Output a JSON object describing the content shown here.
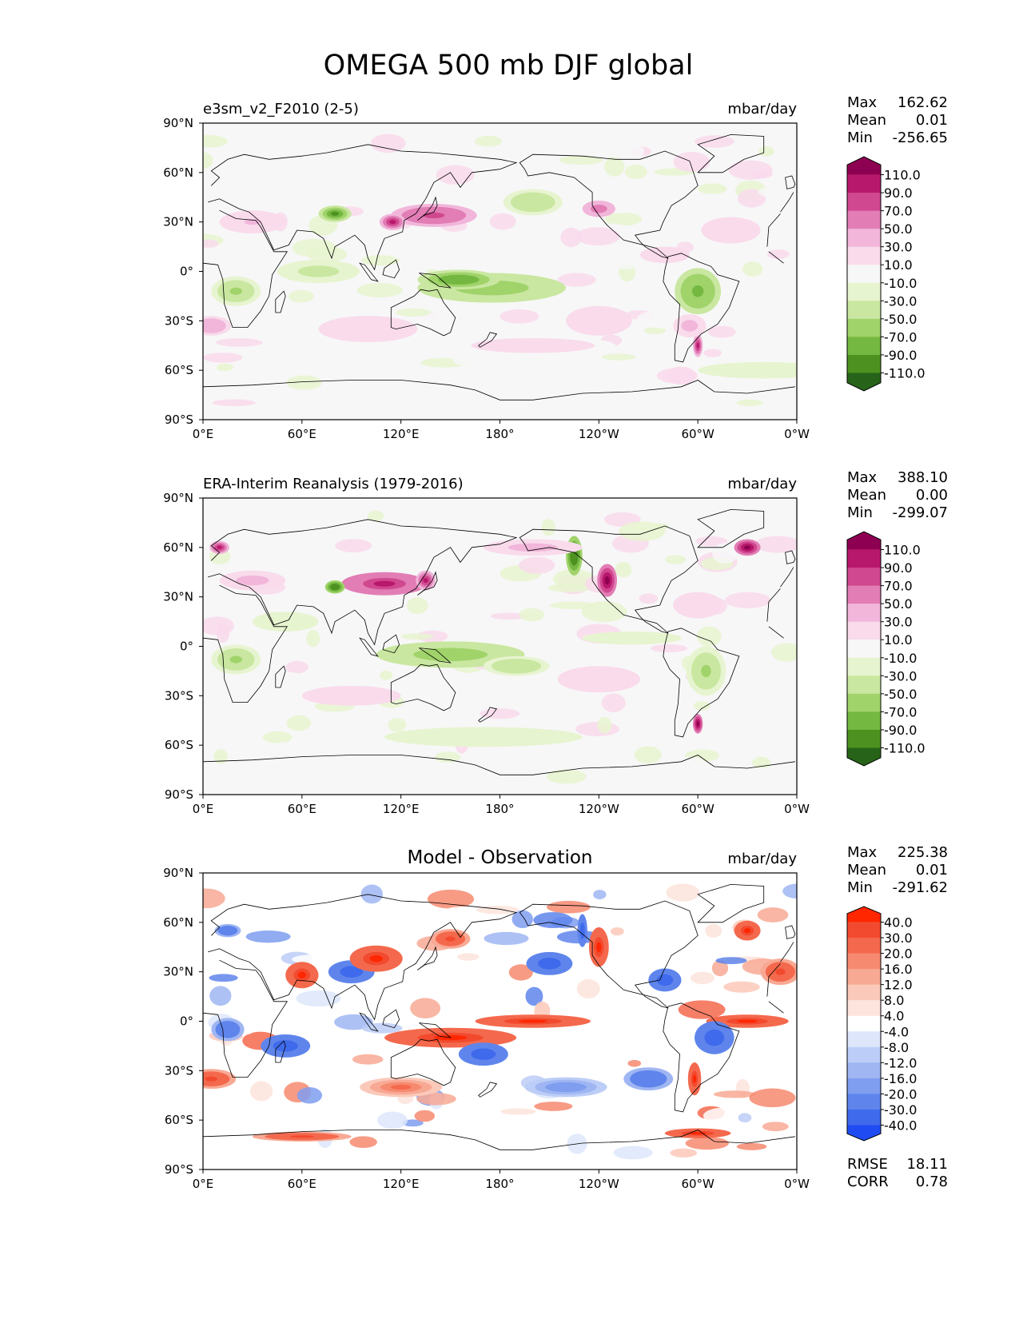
{
  "figure": {
    "title": "OMEGA 500 mb DJF global"
  },
  "chart_data": [
    {
      "type": "heatmap",
      "left_title": "e3sm_v2_F2010 (2-5)",
      "center_title": "",
      "units": "mbar/day",
      "stats": {
        "max_label": "Max",
        "max": "162.62",
        "mean_label": "Mean",
        "mean": "0.01",
        "min_label": "Min",
        "min": "-256.65"
      },
      "colorbar": {
        "levels": [
          "110.0",
          "90.0",
          "70.0",
          "50.0",
          "30.0",
          "10.0",
          "-10.0",
          "-30.0",
          "-50.0",
          "-70.0",
          "-90.0",
          "-110.0"
        ],
        "colors": [
          "#8e0152",
          "#b8186b",
          "#d0488f",
          "#e27db5",
          "#f1b6da",
          "#f9dbec",
          "#f7f7f7",
          "#e7f4d0",
          "#c9e7a0",
          "#a0d36a",
          "#74b841",
          "#4d9221",
          "#276419"
        ]
      },
      "xticks": [
        "0°E",
        "60°E",
        "120°E",
        "180°",
        "120°W",
        "60°W",
        "0°W"
      ],
      "yticks": [
        "90°N",
        "60°N",
        "30°N",
        "0°",
        "30°S",
        "60°S",
        "90°S"
      ]
    },
    {
      "type": "heatmap",
      "left_title": "ERA-Interim Reanalysis (1979-2016)",
      "center_title": "",
      "units": "mbar/day",
      "stats": {
        "max_label": "Max",
        "max": "388.10",
        "mean_label": "Mean",
        "mean": "0.00",
        "min_label": "Min",
        "min": "-299.07"
      },
      "colorbar": {
        "levels": [
          "110.0",
          "90.0",
          "70.0",
          "50.0",
          "30.0",
          "10.0",
          "-10.0",
          "-30.0",
          "-50.0",
          "-70.0",
          "-90.0",
          "-110.0"
        ],
        "colors": [
          "#8e0152",
          "#b8186b",
          "#d0488f",
          "#e27db5",
          "#f1b6da",
          "#f9dbec",
          "#f7f7f7",
          "#e7f4d0",
          "#c9e7a0",
          "#a0d36a",
          "#74b841",
          "#4d9221",
          "#276419"
        ]
      },
      "xticks": [
        "0°E",
        "60°E",
        "120°E",
        "180°",
        "120°W",
        "60°W",
        "0°W"
      ],
      "yticks": [
        "90°N",
        "60°N",
        "30°N",
        "0°",
        "30°S",
        "60°S",
        "90°S"
      ]
    },
    {
      "type": "heatmap",
      "left_title": "",
      "center_title": "Model - Observation",
      "units": "mbar/day",
      "stats": {
        "max_label": "Max",
        "max": "225.38",
        "mean_label": "Mean",
        "mean": "0.01",
        "min_label": "Min",
        "min": "-291.62"
      },
      "rmse_label": "RMSE",
      "rmse": "18.11",
      "corr_label": "CORR",
      "corr": "0.78",
      "colorbar": {
        "levels": [
          "40.0",
          "30.0",
          "20.0",
          "16.0",
          "12.0",
          "8.0",
          "4.0",
          "-4.0",
          "-8.0",
          "-12.0",
          "-16.0",
          "-20.0",
          "-30.0",
          "-40.0"
        ],
        "colors": [
          "#ff2600",
          "#f24a2e",
          "#f4694d",
          "#f68a70",
          "#f8a994",
          "#fbc9ba",
          "#fde4dc",
          "#ffffff",
          "#dde6fb",
          "#bccdf7",
          "#9fb6f3",
          "#7f9ef0",
          "#5f85ec",
          "#3f6aeb",
          "#1f4cf2"
        ]
      },
      "xticks": [
        "0°E",
        "60°E",
        "120°E",
        "180°",
        "120°W",
        "60°W",
        "0°W"
      ],
      "yticks": [
        "90°N",
        "60°N",
        "30°N",
        "0°",
        "30°S",
        "60°S",
        "90°S"
      ]
    }
  ]
}
